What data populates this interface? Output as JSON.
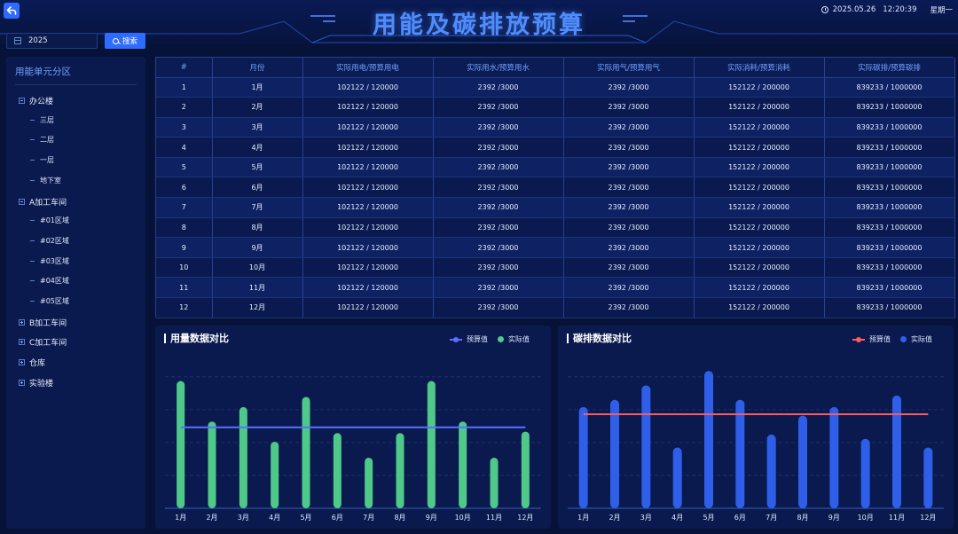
{
  "header": {
    "title": "用能及碳排放预算",
    "date": "2025.05.26",
    "time": "12:20:39",
    "weekday": "星期一"
  },
  "filter": {
    "year": "2025",
    "search_label": "搜索"
  },
  "sidebar": {
    "title": "用能单元分区",
    "groups": [
      {
        "label": "办公楼",
        "expanded": true,
        "children": [
          "三层",
          "二层",
          "一层",
          "地下室"
        ]
      },
      {
        "label": "A加工车间",
        "expanded": true,
        "children": [
          "#01区域",
          "#02区域",
          "#03区域",
          "#04区域",
          "#05区域"
        ]
      },
      {
        "label": "B加工车间",
        "expanded": false,
        "children": []
      },
      {
        "label": "C加工车间",
        "expanded": false,
        "children": []
      },
      {
        "label": "仓库",
        "expanded": false,
        "children": []
      },
      {
        "label": "实验楼",
        "expanded": false,
        "children": []
      }
    ]
  },
  "table": {
    "columns": [
      "#",
      "月份",
      "实际用电/预算用电",
      "实际用水/预算用水",
      "实际用气/预算用气",
      "实际消耗/预算消耗",
      "实际碳排/预算碳排"
    ],
    "rows": [
      [
        "1",
        "1月",
        "102122  /  120000",
        "2392  /3000",
        "2392  /3000",
        "152122  /  200000",
        "839233  /  1000000"
      ],
      [
        "2",
        "2月",
        "102122  /  120000",
        "2392  /3000",
        "2392  /3000",
        "152122  /  200000",
        "839233  /  1000000"
      ],
      [
        "3",
        "3月",
        "102122  /  120000",
        "2392  /3000",
        "2392  /3000",
        "152122  /  200000",
        "839233  /  1000000"
      ],
      [
        "4",
        "4月",
        "102122  /  120000",
        "2392  /3000",
        "2392  /3000",
        "152122  /  200000",
        "839233  /  1000000"
      ],
      [
        "5",
        "5月",
        "102122  /  120000",
        "2392  /3000",
        "2392  /3000",
        "152122  /  200000",
        "839233  /  1000000"
      ],
      [
        "6",
        "6月",
        "102122  /  120000",
        "2392  /3000",
        "2392  /3000",
        "152122  /  200000",
        "839233  /  1000000"
      ],
      [
        "7",
        "7月",
        "102122  /  120000",
        "2392  /3000",
        "2392  /3000",
        "152122  /  200000",
        "839233  /  1000000"
      ],
      [
        "8",
        "8月",
        "102122  /  120000",
        "2392  /3000",
        "2392  /3000",
        "152122  /  200000",
        "839233  /  1000000"
      ],
      [
        "9",
        "9月",
        "102122  /  120000",
        "2392  /3000",
        "2392  /3000",
        "152122  /  200000",
        "839233  /  1000000"
      ],
      [
        "10",
        "10月",
        "102122  /  120000",
        "2392  /3000",
        "2392  /3000",
        "152122  /  200000",
        "839233  /  1000000"
      ],
      [
        "11",
        "11月",
        "102122  /  120000",
        "2392  /3000",
        "2392  /3000",
        "152122  /  200000",
        "839233  /  1000000"
      ],
      [
        "12",
        "12月",
        "102122  /  120000",
        "2392  /3000",
        "2392  /3000",
        "152122  /  200000",
        "839233  /  1000000"
      ]
    ]
  },
  "charts": {
    "usage": {
      "title": "用量数据对比",
      "legend_budget": "预算值",
      "legend_actual": "实际值"
    },
    "carbon": {
      "title": "碳排数据对比",
      "legend_budget": "预算值",
      "legend_actual": "实际值"
    }
  },
  "colors": {
    "accent": "#2f6bff",
    "usage_bar": "#4fc98a",
    "usage_line": "#5a6fff",
    "carbon_bar": "#2f5fe8",
    "carbon_line": "#ff5a5a"
  },
  "chart_data": [
    {
      "type": "bar",
      "title": "用量数据对比",
      "categories": [
        "1月",
        "2月",
        "3月",
        "4月",
        "5月",
        "6月",
        "7月",
        "8月",
        "9月",
        "10月",
        "11月",
        "12月"
      ],
      "series": [
        {
          "name": "实际值",
          "type": "bar",
          "values": [
            88,
            60,
            70,
            46,
            77,
            52,
            35,
            52,
            88,
            60,
            35,
            53
          ]
        },
        {
          "name": "预算值",
          "type": "line",
          "values": [
            56,
            56,
            56,
            56,
            56,
            56,
            56,
            56,
            56,
            56,
            56,
            56
          ]
        }
      ],
      "ylim": [
        0,
        100
      ],
      "grid": true,
      "legend": "top-right"
    },
    {
      "type": "bar",
      "title": "碳排数据对比",
      "categories": [
        "1月",
        "2月",
        "3月",
        "4月",
        "5月",
        "6月",
        "7月",
        "8月",
        "9月",
        "10月",
        "11月",
        "12月"
      ],
      "series": [
        {
          "name": "实际值",
          "type": "bar",
          "values": [
            70,
            75,
            85,
            42,
            95,
            75,
            51,
            64,
            70,
            48,
            78,
            42
          ]
        },
        {
          "name": "预算值",
          "type": "line",
          "values": [
            65,
            65,
            65,
            65,
            65,
            65,
            65,
            65,
            65,
            65,
            65,
            65
          ]
        }
      ],
      "ylim": [
        0,
        100
      ],
      "grid": true,
      "legend": "top-right"
    }
  ]
}
